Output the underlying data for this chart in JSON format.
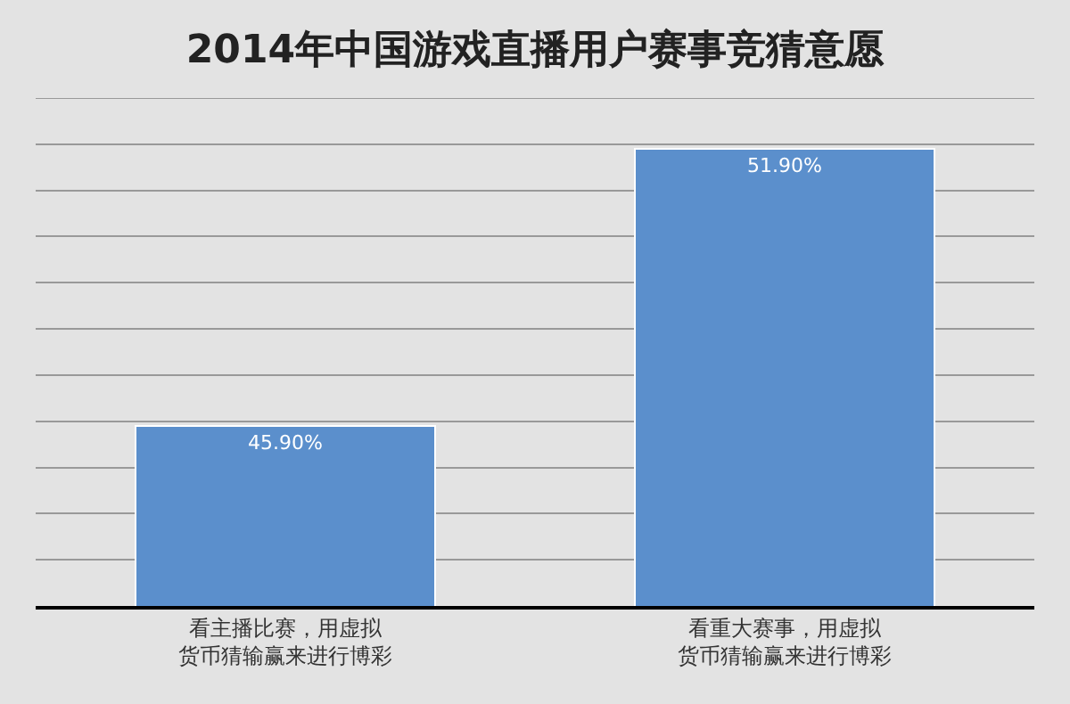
{
  "chart_data": {
    "type": "bar",
    "title": "2014年中国游戏直播用户赛事竞猜意愿",
    "categories": [
      "看主播比赛，用虚拟货币猜输赢来进行博彩",
      "看重大赛事，用虚拟货币猜输赢来进行博彩"
    ],
    "values": [
      45.9,
      51.9
    ],
    "color": "#5b8fcc",
    "value_labels": [
      "45.90%",
      "51.90%"
    ],
    "ylim": [
      42,
      53
    ],
    "yticks": [
      {
        "value": 42,
        "label": null
      },
      {
        "value": 43,
        "label": null
      },
      {
        "value": 44,
        "label": null
      },
      {
        "value": 45,
        "label": null
      },
      {
        "value": 46,
        "label": null
      },
      {
        "value": 47,
        "label": null
      },
      {
        "value": 48,
        "label": null
      },
      {
        "value": 49,
        "label": null
      },
      {
        "value": 50,
        "label": null
      },
      {
        "value": 51,
        "label": null
      },
      {
        "value": 52,
        "label": null
      }
    ],
    "tick_labels": "x",
    "grid": "y"
  }
}
